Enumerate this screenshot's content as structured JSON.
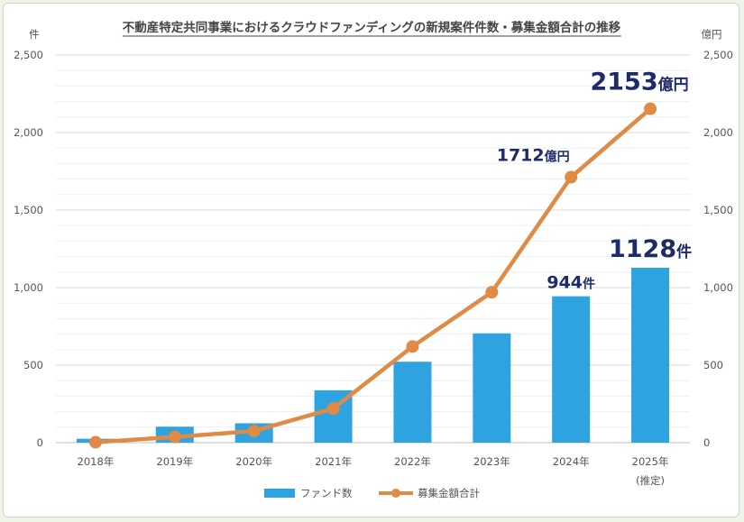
{
  "chart_data": {
    "type": "bar+line",
    "title": "不動産特定共同事業におけるクラウドファンディングの新規案件件数・募集金額合計の推移",
    "categories": [
      "2018年",
      "2019年",
      "2020年",
      "2021年",
      "2022年",
      "2023年",
      "2024年",
      "2025年"
    ],
    "category_sublabels": [
      "",
      "",
      "",
      "",
      "",
      "",
      "",
      "(推定)"
    ],
    "y_left": {
      "unit": "件",
      "ylim": [
        0,
        2500
      ],
      "ticks": [
        "0",
        "500",
        "1,000",
        "1,500",
        "2,000",
        "2,500"
      ]
    },
    "y_right": {
      "unit": "億円",
      "ylim": [
        0,
        2500
      ],
      "ticks": [
        "0",
        "500",
        "1,000",
        "1,500",
        "2,000",
        "2,500"
      ]
    },
    "grid": true,
    "legend_position": "bottom",
    "series": [
      {
        "name": "ファンド数",
        "type": "bar",
        "axis": "left",
        "color": "#2fa3e0",
        "values": [
          25,
          103,
          125,
          338,
          522,
          705,
          944,
          1128
        ]
      },
      {
        "name": "募集金額合計",
        "type": "line",
        "axis": "right",
        "color": "#df8a45",
        "values": [
          3,
          37,
          75,
          220,
          620,
          970,
          1712,
          2153
        ]
      }
    ],
    "annotations": [
      {
        "series": "ファンド数",
        "index": 6,
        "number": "944",
        "unit": "件"
      },
      {
        "series": "ファンド数",
        "index": 7,
        "number": "1128",
        "unit": "件"
      },
      {
        "series": "募集金額合計",
        "index": 6,
        "number": "1712",
        "unit": "億円"
      },
      {
        "series": "募集金額合計",
        "index": 7,
        "number": "2153",
        "unit": "億円"
      }
    ]
  }
}
